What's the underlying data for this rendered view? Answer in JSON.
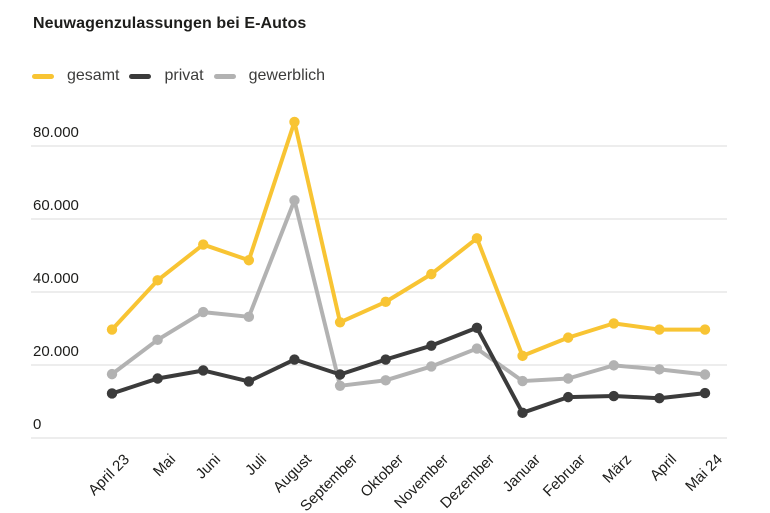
{
  "title": "Neuwagenzulassungen bei E-Autos",
  "colors": {
    "gesamt": "#F8C433",
    "privat": "#3B3B3B",
    "gewerblich": "#B2B2B2",
    "grid": "#DBDBDB",
    "text": "#1D1D1B"
  },
  "chart_data": {
    "type": "line",
    "title": "Neuwagenzulassungen bei E-Autos",
    "xlabel": "",
    "ylabel": "",
    "categories": [
      "April 23",
      "Mai",
      "Juni",
      "Juli",
      "August",
      "September",
      "Oktober",
      "November",
      "Dezember",
      "Januar",
      "Februar",
      "März",
      "April",
      "Mai 24"
    ],
    "series": [
      {
        "name": "gesamt",
        "color": "#F8C433",
        "values": [
          29700,
          43200,
          53000,
          48700,
          86600,
          31700,
          37300,
          44900,
          54700,
          22500,
          27500,
          31400,
          29700,
          29700
        ]
      },
      {
        "name": "privat",
        "color": "#3B3B3B",
        "values": [
          12200,
          16300,
          18500,
          15500,
          21500,
          17400,
          21500,
          25300,
          30200,
          6900,
          11200,
          11500,
          10900,
          12300
        ]
      },
      {
        "name": "gewerblich",
        "color": "#B2B2B2",
        "values": [
          17500,
          26900,
          34500,
          33200,
          65100,
          14300,
          15800,
          19600,
          24500,
          15600,
          16300,
          19900,
          18800,
          17400
        ]
      }
    ],
    "ylim": [
      0,
      88000
    ],
    "yticks": [
      0,
      20000,
      40000,
      60000,
      80000
    ],
    "ytick_labels": [
      "0",
      "20.000",
      "40.000",
      "60.000",
      "80.000"
    ],
    "grid": true,
    "legend_position": "top-left"
  }
}
